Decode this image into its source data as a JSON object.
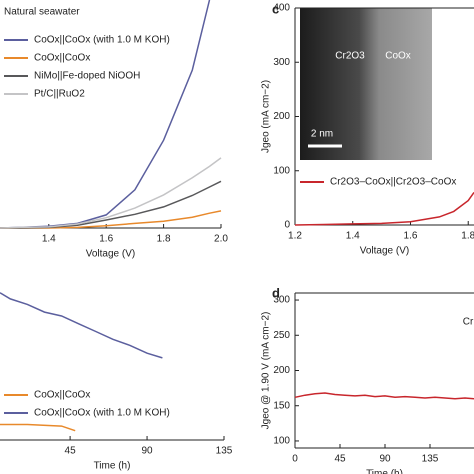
{
  "chart_data": [
    {
      "type": "line",
      "legend_title": "Natural seawater",
      "xlabel": "Voltage (V)",
      "x": [
        1.23,
        1.3,
        1.4,
        1.5,
        1.6,
        1.7,
        1.8,
        1.9,
        1.96,
        2.0
      ],
      "xlim": [
        1.23,
        2.0
      ],
      "xticks": [
        1.4,
        1.6,
        1.8,
        {
          "value": 2.0,
          "label": "2.0"
        }
      ],
      "ylim": [
        0,
        400
      ],
      "series": [
        {
          "name": "CoOx||CoOx (with 1.0 M KOH)",
          "color": "#5b5f9e",
          "values": [
            0,
            1,
            3,
            8,
            23,
            67,
            154,
            277,
            400,
            null
          ]
        },
        {
          "name": "CoOx||CoOx",
          "color": "#e8892b",
          "values": [
            0,
            0,
            0,
            1,
            4,
            8,
            12,
            19,
            26,
            30
          ]
        },
        {
          "name": "NiMo||Fe-doped NiOOH",
          "color": "#58585a",
          "values": [
            0,
            0,
            1,
            5,
            14,
            24,
            37,
            57,
            72,
            82
          ]
        },
        {
          "name": "Pt/C||RuO2",
          "color": "#c4c4c6",
          "values": [
            0,
            1,
            2,
            7,
            18,
            35,
            58,
            88,
            108,
            123
          ]
        }
      ]
    },
    {
      "type": "line",
      "panel": "c",
      "xlabel": "Voltage (V)",
      "ylabel": "Jgeo (mA cm−2)",
      "x": [
        1.2,
        1.3,
        1.4,
        1.5,
        1.6,
        1.7,
        1.75,
        1.8,
        1.82
      ],
      "xlim": [
        1.2,
        1.82
      ],
      "xticks": [
        1.2,
        1.4,
        1.6,
        1.8
      ],
      "ylim": [
        0,
        400
      ],
      "yticks": [
        0,
        100,
        200,
        300,
        400
      ],
      "annotations": [
        "Cr2O3",
        "CoOx",
        "2 nm"
      ],
      "series": [
        {
          "name": "Cr2O3–CoOx||Cr2O3–CoOx",
          "color": "#c8262c",
          "values": [
            0,
            1,
            2,
            3,
            6,
            15,
            25,
            45,
            60
          ]
        }
      ]
    },
    {
      "type": "line",
      "xlabel": "Time (h)",
      "xlim": [
        4,
        135
      ],
      "xticks": [
        45,
        90,
        135
      ],
      "ylim": [
        0,
        200
      ],
      "series": [
        {
          "name": "CoOx||CoOx",
          "color": "#e8892b",
          "x": [
            4,
            20,
            40,
            48
          ],
          "values": [
            20,
            20,
            18,
            12
          ]
        },
        {
          "name": "CoOx||CoOx (with 1.0 M KOH)",
          "color": "#5b5f9e",
          "x": [
            4,
            10,
            20,
            30,
            40,
            50,
            60,
            70,
            80,
            90,
            99
          ],
          "values": [
            190,
            182,
            175,
            165,
            160,
            150,
            140,
            130,
            122,
            112,
            106
          ]
        }
      ]
    },
    {
      "type": "line",
      "panel": "d",
      "xlabel": "Time (h)",
      "ylabel": "Jgeo @ 1.90 V (mA cm−2)",
      "annotations": [
        "Cr"
      ],
      "xlim": [
        0,
        179
      ],
      "xticks": [
        0,
        45,
        90,
        135
      ],
      "ylim": [
        90,
        310
      ],
      "yticks": [
        100,
        150,
        200,
        250,
        300
      ],
      "series": [
        {
          "name": null,
          "color": "#c8262c",
          "x": [
            0,
            10,
            20,
            30,
            40,
            50,
            60,
            70,
            80,
            90,
            100,
            110,
            120,
            130,
            140,
            150,
            160,
            170,
            179
          ],
          "values": [
            162,
            165,
            167,
            168,
            166,
            165,
            164,
            165,
            163,
            164,
            162,
            163,
            162,
            161,
            162,
            161,
            160,
            161,
            160
          ]
        }
      ]
    }
  ]
}
